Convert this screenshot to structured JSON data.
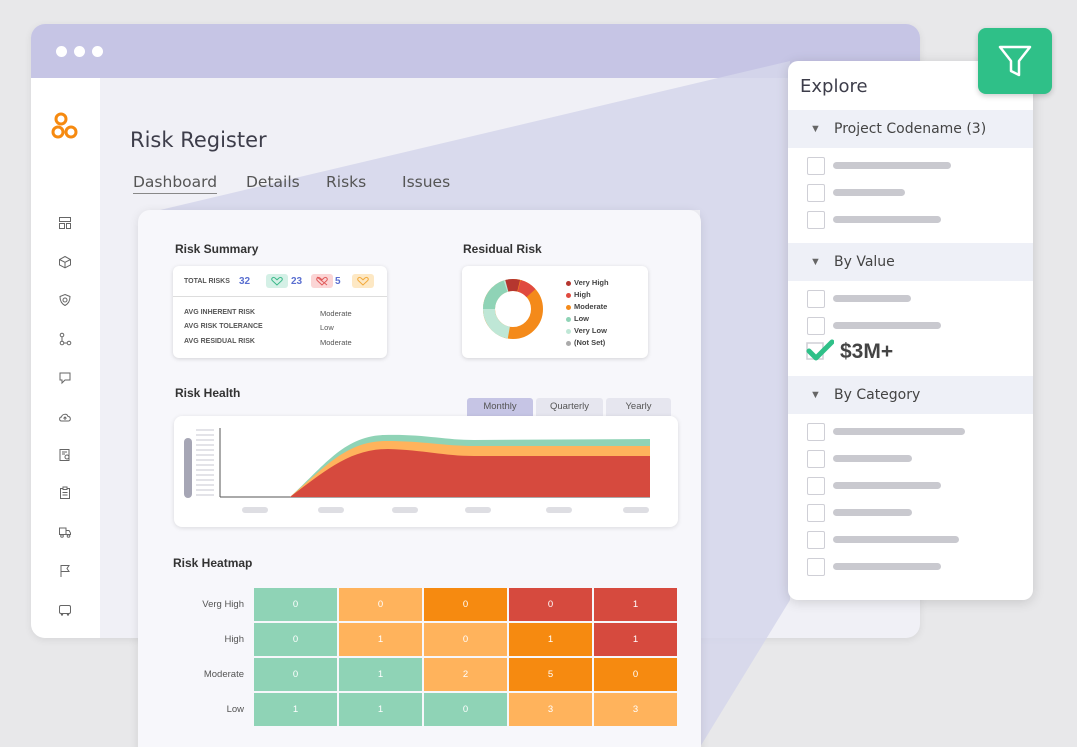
{
  "window": {
    "title": "Risk Register",
    "tabs": [
      {
        "label": "Dashboard",
        "active": true
      },
      {
        "label": "Details",
        "active": false
      },
      {
        "label": "Risks",
        "active": false
      },
      {
        "label": "Issues",
        "active": false
      }
    ]
  },
  "sidebar": {
    "logo": "orange-circles-logo",
    "icons": [
      "dashboard-icon",
      "cube-icon",
      "shield-icon",
      "workflow-icon",
      "bookmark-icon",
      "cloud-upload-icon",
      "report-icon",
      "clipboard-icon",
      "truck-icon",
      "flag-icon",
      "vehicle-icon"
    ]
  },
  "risk_summary": {
    "title": "Risk Summary",
    "total_label": "TOTAL RISKS",
    "total_value": "32",
    "chips": [
      {
        "value": "23",
        "color": "#d4f0e6",
        "icon": "heart-check-icon"
      },
      {
        "value": "5",
        "color": "#fbd5d5",
        "icon": "heart-cross-icon"
      },
      {
        "value": "",
        "color": "#fde8c4",
        "icon": "heart-icon"
      }
    ],
    "rows": [
      {
        "label": "AVG INHERENT RISK",
        "value": "Moderate"
      },
      {
        "label": "AVG RISK TOLERANCE",
        "value": "Low"
      },
      {
        "label": "AVG RESIDUAL RISK",
        "value": "Moderate"
      }
    ]
  },
  "residual_risk": {
    "title": "Residual Risk",
    "legend": [
      {
        "label": "Very High",
        "color": "#b5362f"
      },
      {
        "label": "High",
        "color": "#e04a3f"
      },
      {
        "label": "Moderate",
        "color": "#f48a1a"
      },
      {
        "label": "Low",
        "color": "#8fd3b6"
      },
      {
        "label": "Very Low",
        "color": "#bfe7d6"
      },
      {
        "label": "(Not Set)",
        "color": "#aaaaaa"
      }
    ]
  },
  "risk_health": {
    "title": "Risk Health",
    "periods": [
      {
        "label": "Monthly",
        "active": true
      },
      {
        "label": "Quarterly",
        "active": false
      },
      {
        "label": "Yearly",
        "active": false
      }
    ]
  },
  "risk_heatmap": {
    "title": "Risk Heatmap",
    "rows": [
      {
        "label": "Verg High",
        "cells": [
          {
            "v": "0",
            "c": "#8fd3b6"
          },
          {
            "v": "0",
            "c": "#ffb35c"
          },
          {
            "v": "0",
            "c": "#f68a10"
          },
          {
            "v": "0",
            "c": "#d64a3e"
          },
          {
            "v": "1",
            "c": "#d64a3e"
          }
        ]
      },
      {
        "label": "High",
        "cells": [
          {
            "v": "0",
            "c": "#8fd3b6"
          },
          {
            "v": "1",
            "c": "#ffb35c"
          },
          {
            "v": "0",
            "c": "#ffb35c"
          },
          {
            "v": "1",
            "c": "#f68a10"
          },
          {
            "v": "1",
            "c": "#d64a3e"
          }
        ]
      },
      {
        "label": "Moderate",
        "cells": [
          {
            "v": "0",
            "c": "#8fd3b6"
          },
          {
            "v": "1",
            "c": "#8fd3b6"
          },
          {
            "v": "2",
            "c": "#ffb35c"
          },
          {
            "v": "5",
            "c": "#f68a10"
          },
          {
            "v": "0",
            "c": "#f68a10"
          }
        ]
      },
      {
        "label": "Low",
        "cells": [
          {
            "v": "1",
            "c": "#8fd3b6"
          },
          {
            "v": "1",
            "c": "#8fd3b6"
          },
          {
            "v": "0",
            "c": "#8fd3b6"
          },
          {
            "v": "3",
            "c": "#ffb35c"
          },
          {
            "v": "3",
            "c": "#ffb35c"
          }
        ]
      }
    ]
  },
  "explore": {
    "title": "Explore",
    "groups": [
      {
        "label": "Project Codename (3)"
      },
      {
        "label": "By Value"
      },
      {
        "label": "By Category"
      }
    ],
    "checked_value": "$3M+"
  },
  "filter_button": {
    "icon": "filter-icon",
    "color": "#2fc088"
  }
}
